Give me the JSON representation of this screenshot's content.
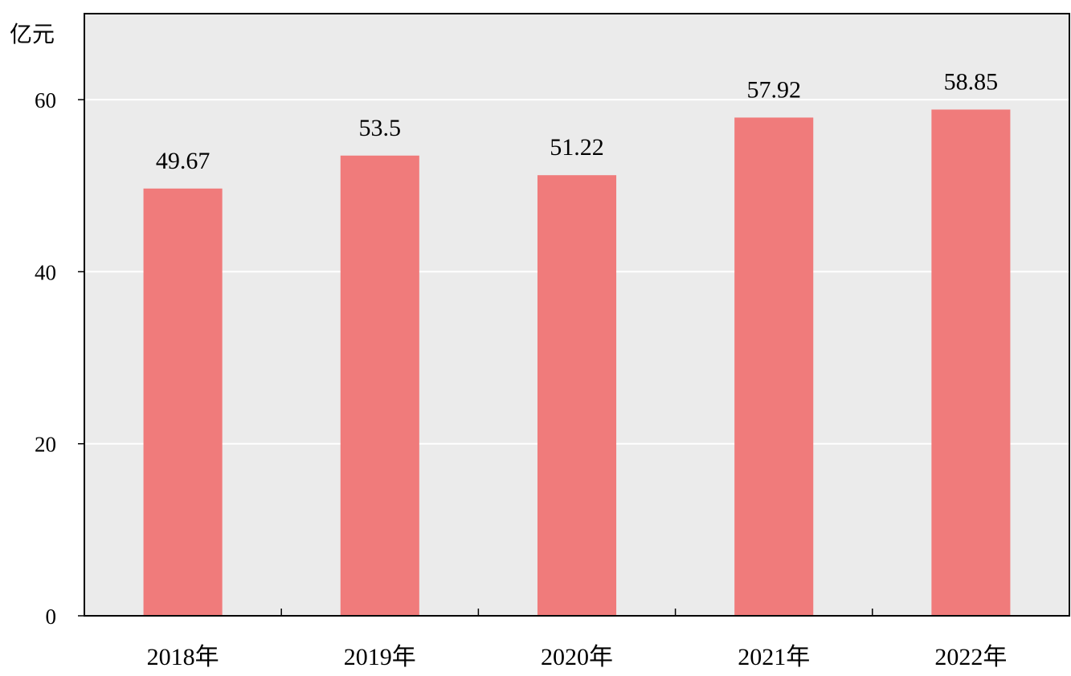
{
  "chart_data": {
    "type": "bar",
    "unit_label": "亿元",
    "categories": [
      "2018年",
      "2019年",
      "2020年",
      "2021年",
      "2022年"
    ],
    "values": [
      49.67,
      53.5,
      51.22,
      57.92,
      58.85
    ],
    "value_labels": [
      "49.67",
      "53.5",
      "51.22",
      "57.92",
      "58.85"
    ],
    "y_ticks": [
      "0",
      "20",
      "40",
      "60"
    ],
    "ylim": [
      0,
      70
    ],
    "grid": true,
    "colors": {
      "bar": "#f07b7b",
      "plot_background": "#ebebeb",
      "gridline": "#ffffff",
      "axis": "#000000"
    }
  }
}
